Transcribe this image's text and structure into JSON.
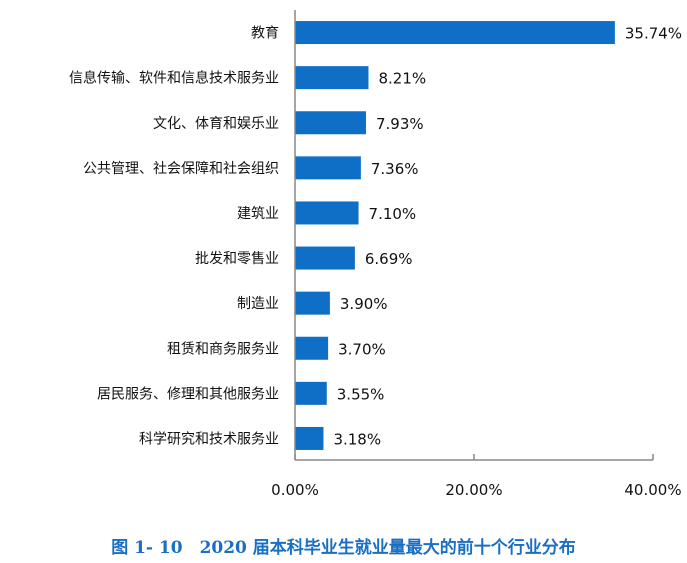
{
  "chart_data": {
    "type": "bar",
    "orientation": "horizontal",
    "title": "图 1- 10　2020 届本科毕业生就业量最大的前十个行业分布",
    "categories": [
      "教育",
      "信息传输、软件和信息技术服务业",
      "文化、体育和娱乐业",
      "公共管理、社会保障和社会组织",
      "建筑业",
      "批发和零售业",
      "制造业",
      "租赁和商务服务业",
      "居民服务、修理和其他服务业",
      "科学研究和技术服务业"
    ],
    "values": [
      35.74,
      8.21,
      7.93,
      7.36,
      7.1,
      6.69,
      3.9,
      3.7,
      3.55,
      3.18
    ],
    "value_labels": [
      "35.74%",
      "8.21%",
      "7.93%",
      "7.36%",
      "7.10%",
      "6.69%",
      "3.90%",
      "3.70%",
      "3.55%",
      "3.18%"
    ],
    "xlim": [
      0,
      40
    ],
    "xticks": [
      0,
      20,
      40
    ],
    "xtick_labels": [
      "0.00%",
      "20.00%",
      "40.00%"
    ],
    "xlabel": "",
    "ylabel": "",
    "grid": false,
    "bar_color": "#0f6fc6",
    "title_color": "#1a6fc4"
  }
}
